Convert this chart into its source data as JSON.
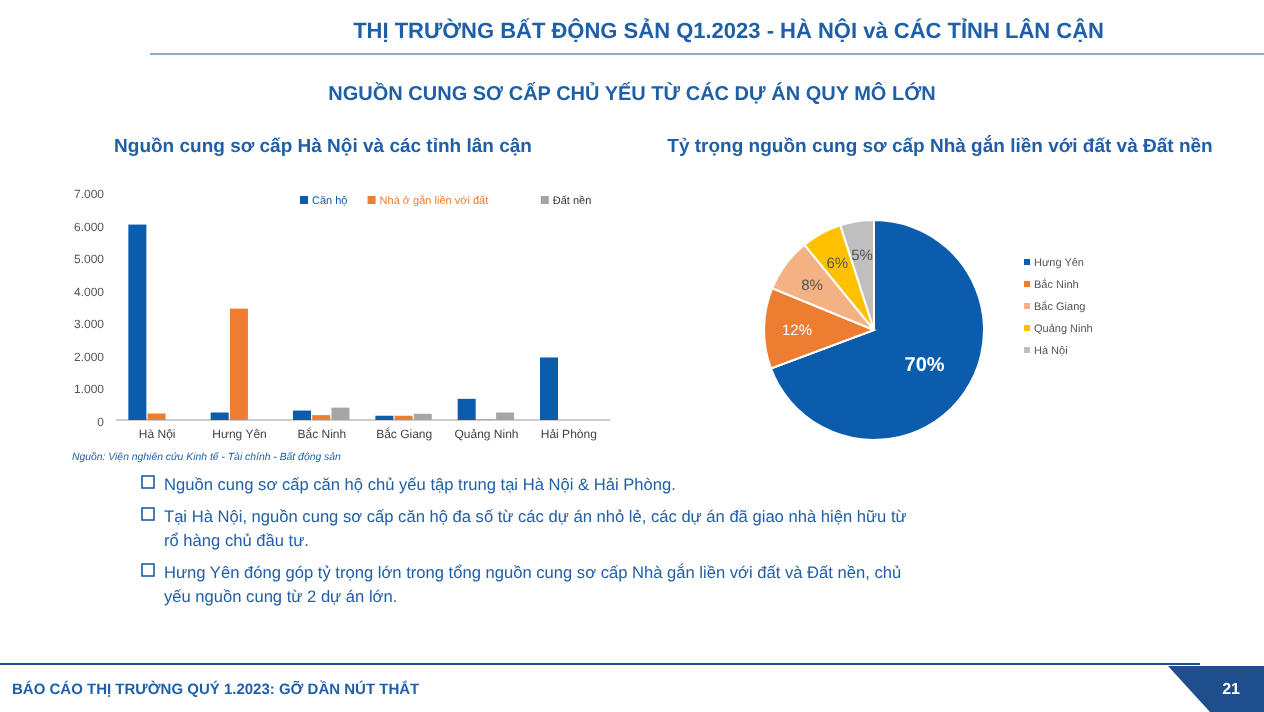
{
  "chart_data": [
    {
      "type": "bar",
      "title": "Nguồn cung sơ cấp Hà Nội và các tỉnh lân cận",
      "categories": [
        "Hà Nội",
        "Hưng Yên",
        "Bắc Ninh",
        "Bắc Giang",
        "Quảng Ninh",
        "Hải Phòng"
      ],
      "series": [
        {
          "name": "Căn hộ",
          "color": "#0b5cad",
          "values": [
            6000,
            230,
            290,
            130,
            650,
            1920
          ]
        },
        {
          "name": "Nhà ở gắn liền với đất",
          "color": "#ed7d31",
          "values": [
            200,
            3420,
            150,
            130,
            20,
            0
          ]
        },
        {
          "name": "Đất nền",
          "color": "#a5a5a5",
          "values": [
            0,
            0,
            380,
            190,
            230,
            0
          ]
        }
      ],
      "ylim": [
        0,
        7000
      ],
      "yticks": [
        {
          "value": 0,
          "label": "0"
        },
        {
          "value": 1000,
          "label": "1.000"
        },
        {
          "value": 2000,
          "label": "2.000"
        },
        {
          "value": 3000,
          "label": "3.000"
        },
        {
          "value": 4000,
          "label": "4.000"
        },
        {
          "value": 5000,
          "label": "5.000"
        },
        {
          "value": 6000,
          "label": "6.000"
        },
        {
          "value": 7000,
          "label": "7.000"
        }
      ],
      "legend": "top right",
      "annotations": [
        "Nguồn: Viện nghiên cứu Kinh tế - Tài chính - Bất động sản"
      ]
    },
    {
      "type": "pie",
      "title": "Tỷ trọng nguồn cung sơ cấp Nhà gắn liền với đất và Đất nền",
      "categories": [
        "Hưng Yên",
        "Bắc Ninh",
        "Bắc Giang",
        "Quảng Ninh",
        "Hà Nội"
      ],
      "values": [
        70,
        12,
        8,
        6,
        5
      ],
      "value_labels": [
        "70%",
        "12%",
        "8%",
        "6%",
        "5%"
      ],
      "colors": [
        "#0b5cad",
        "#ed7d31",
        "#f4b183",
        "#ffc000",
        "#bfbfbf"
      ],
      "legend": "right"
    },
    {
      "type": "other",
      "title": "THỊ TRƯỜNG BẤT ĐỘNG SẢN Q1.2023 - HÀ NỘI và CÁC TỈNH LÂN CẬN",
      "subtitle": "NGUỒN CUNG SƠ CẤP CHỦ YẾU TỪ CÁC DỰ ÁN QUY MÔ LỚN",
      "annotations": [
        "Nguồn cung sơ cấp căn hộ chủ yếu tập trung tại Hà Nội & Hải Phòng.",
        "Tại Hà Nội, nguồn cung sơ cấp căn hộ đa số từ các dự án nhỏ lẻ, các dự án đã giao nhà hiện hữu từ rổ hàng chủ đầu tư.",
        "Hưng Yên đóng góp tỷ trọng lớn trong tổng nguồn cung sơ cấp Nhà gắn liền với đất và Đất nền, chủ yếu nguồn cung từ 2 dự án lớn.",
        "BÁO CÁO THỊ TRƯỜNG QUÝ 1.2023: GỠ DẦN NÚT THẮT",
        "21"
      ]
    }
  ]
}
